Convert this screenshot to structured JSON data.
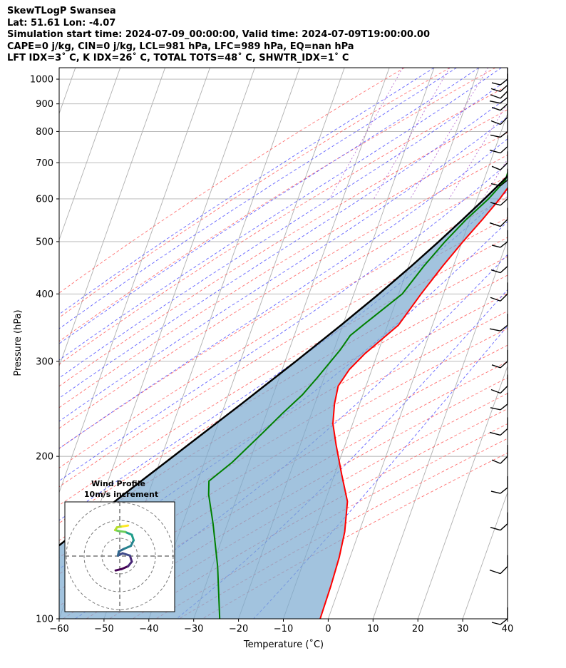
{
  "header": {
    "line1": "SkewTLogP Swansea",
    "line2": "Lat: 51.61   Lon: -4.07",
    "line3": "Simulation start time: 2024-07-09_00:00:00, Valid time: 2024-07-09T19:00:00.00",
    "line4": "CAPE=0 j/kg, CIN=0 j/kg, LCL=981 hPa, LFC=989 hPa, EQ=nan hPa",
    "line5": "LFT IDX=3˚ C, K IDX=26˚ C, TOTAL TOTS=48˚ C, SHWTR_IDX=1˚ C"
  },
  "chart_data": {
    "type": "skew-t",
    "xlabel": "Temperature (˚C)",
    "ylabel": "Pressure (hPa)",
    "xlim": [
      -60,
      40
    ],
    "ylim": [
      1050,
      100
    ],
    "x_ticks": [
      -60,
      -50,
      -40,
      -30,
      -20,
      -10,
      0,
      10,
      20,
      30,
      40
    ],
    "y_ticks": [
      100,
      200,
      300,
      400,
      500,
      600,
      700,
      800,
      900,
      1000
    ],
    "grid": true,
    "series": [
      {
        "role": "temperature",
        "color": "#ff0000",
        "points": [
          [
            15.8,
            960
          ],
          [
            15.4,
            900
          ],
          [
            15.2,
            850
          ],
          [
            14.0,
            800
          ],
          [
            12.4,
            740
          ],
          [
            10.2,
            700
          ],
          [
            6.6,
            650
          ],
          [
            5.0,
            600
          ],
          [
            2.8,
            550
          ],
          [
            0.2,
            500
          ],
          [
            -2.4,
            450
          ],
          [
            -5.0,
            400
          ],
          [
            -7.6,
            350
          ],
          [
            -12.8,
            310
          ],
          [
            -15.0,
            290
          ],
          [
            -16.2,
            270
          ],
          [
            -15.6,
            250
          ],
          [
            -14.4,
            230
          ],
          [
            -12.0,
            210
          ],
          [
            -8.4,
            185
          ],
          [
            -5.0,
            165
          ],
          [
            -3.2,
            145
          ],
          [
            -2.4,
            130
          ],
          [
            -2.0,
            115
          ],
          [
            -1.8,
            100
          ]
        ]
      },
      {
        "role": "dewpoint",
        "color": "#008000",
        "points": [
          [
            15.5,
            960
          ],
          [
            14.8,
            900
          ],
          [
            13.8,
            850
          ],
          [
            10.5,
            800
          ],
          [
            6.5,
            750
          ],
          [
            4.6,
            700
          ],
          [
            4.8,
            650
          ],
          [
            2.5,
            600
          ],
          [
            -0.8,
            550
          ],
          [
            -3.8,
            500
          ],
          [
            -6.6,
            450
          ],
          [
            -9.2,
            400
          ],
          [
            -15.5,
            350
          ],
          [
            -17.5,
            335
          ],
          [
            -18.6,
            315
          ],
          [
            -21.5,
            280
          ],
          [
            -23.5,
            260
          ],
          [
            -26.5,
            240
          ],
          [
            -29.5,
            220
          ],
          [
            -33.8,
            195
          ],
          [
            -37.5,
            180
          ],
          [
            -36.5,
            170
          ],
          [
            -33.2,
            150
          ],
          [
            -28.8,
            125
          ],
          [
            -24.2,
            100
          ]
        ]
      },
      {
        "role": "parcel",
        "color": "#000000",
        "points": [
          [
            16.3,
            990
          ],
          [
            15.2,
            950
          ],
          [
            14.2,
            900
          ],
          [
            12.5,
            850
          ],
          [
            10.8,
            800
          ],
          [
            8.8,
            750
          ],
          [
            6.8,
            700
          ],
          [
            4.4,
            650
          ],
          [
            1.6,
            600
          ],
          [
            -1.6,
            550
          ],
          [
            -5.2,
            500
          ],
          [
            -9.4,
            450
          ],
          [
            -14.4,
            400
          ],
          [
            -20.4,
            350
          ],
          [
            -27.6,
            300
          ],
          [
            -36.4,
            250
          ],
          [
            -47.4,
            200
          ],
          [
            -54.0,
            175
          ],
          [
            -61.5,
            150
          ],
          [
            -70.0,
            125
          ],
          [
            -80.0,
            100
          ]
        ]
      }
    ],
    "wind_barbs_pressures": [
      1000,
      975,
      950,
      925,
      900,
      850,
      800,
      750,
      700,
      650,
      600,
      550,
      500,
      450,
      400,
      350,
      300,
      270,
      250,
      225,
      200,
      175,
      150,
      125,
      100
    ],
    "hodograph": {
      "title": "Wind Profile",
      "subtitle": "10m/s increment",
      "points": [
        [
          -0.9,
          -3.1
        ],
        [
          0.4,
          -2.8
        ],
        [
          1.8,
          -2.2
        ],
        [
          2.6,
          -1.2
        ],
        [
          2.2,
          0.1
        ],
        [
          0.6,
          0.6
        ],
        [
          -0.4,
          0.1
        ],
        [
          -0.2,
          1.0
        ],
        [
          1.0,
          1.6
        ],
        [
          2.4,
          2.2
        ],
        [
          3.0,
          3.4
        ],
        [
          2.6,
          4.6
        ],
        [
          1.2,
          5.2
        ],
        [
          -0.2,
          5.4
        ],
        [
          -1.0,
          5.6
        ],
        [
          -0.6,
          6.2
        ],
        [
          0.6,
          6.4
        ],
        [
          1.8,
          6.6
        ]
      ]
    }
  }
}
